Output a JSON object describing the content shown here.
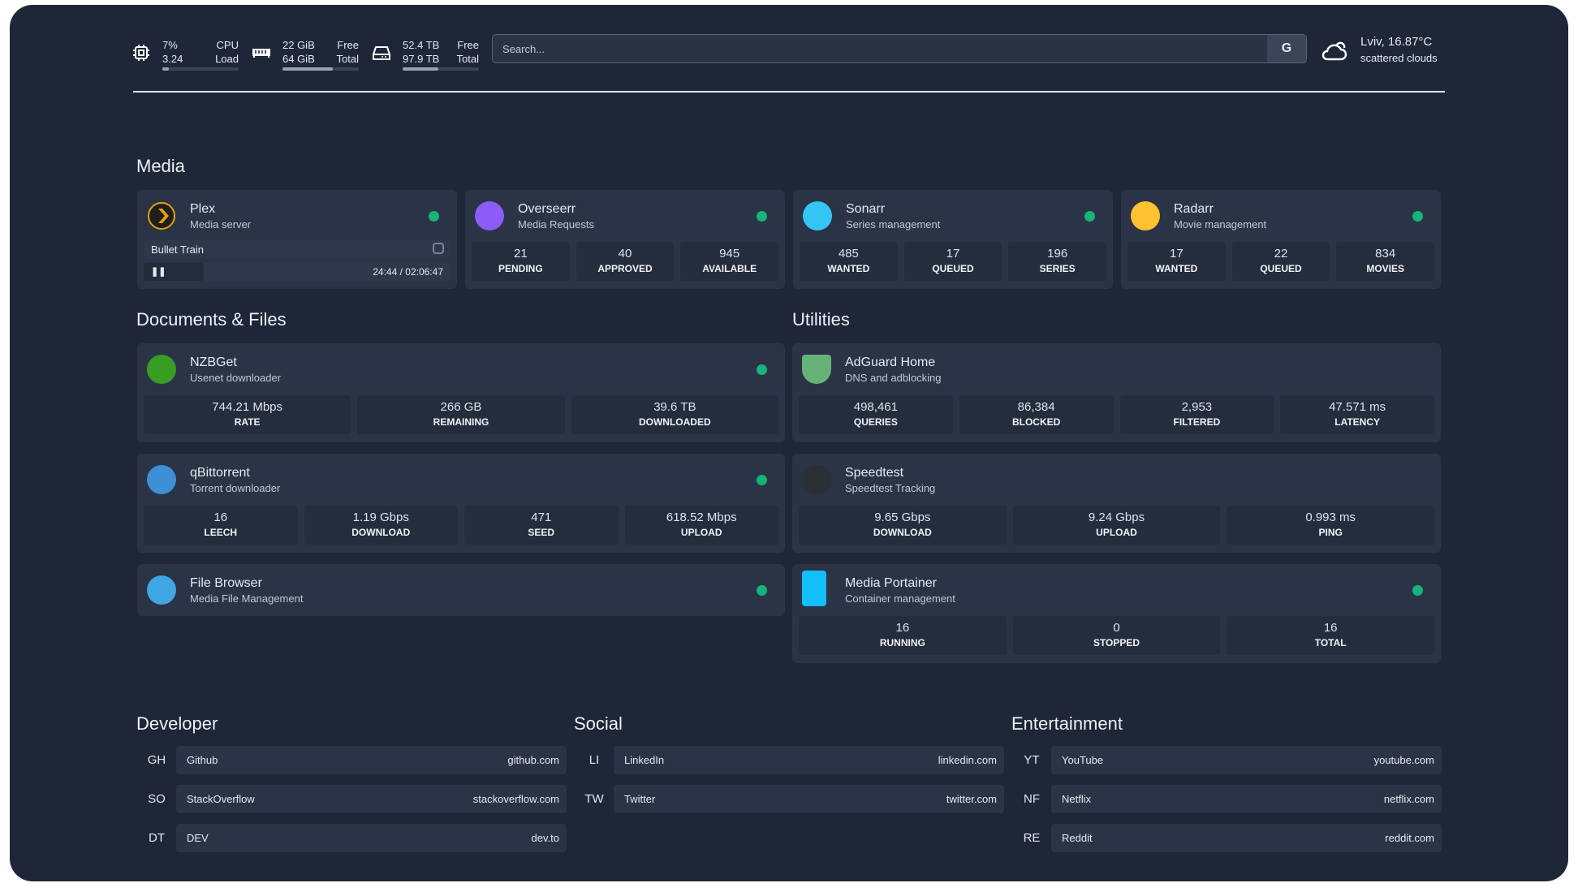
{
  "resources": [
    {
      "icon": "cpu-icon",
      "v1": "7%",
      "v2": "3.24",
      "k1": "CPU",
      "k2": "Load",
      "percent": 7
    },
    {
      "icon": "memory-icon",
      "v1": "22 GiB",
      "v2": "64 GiB",
      "k1": "Free",
      "k2": "Total",
      "percent": 66
    },
    {
      "icon": "disk-icon",
      "v1": "52.4 TB",
      "v2": "97.9 TB",
      "k1": "Free",
      "k2": "Total",
      "percent": 47
    }
  ],
  "search": {
    "placeholder": "Search...",
    "provider": "G"
  },
  "weather": {
    "icon": "cloud-icon",
    "location": "Lviv, 16.87°C",
    "condition": "scattered clouds"
  },
  "sections": {
    "media": "Media",
    "docs": "Documents & Files",
    "utilities": "Utilities",
    "developer": "Developer",
    "social": "Social",
    "entertainment": "Entertainment"
  },
  "status_color": "#16b47a",
  "plex": {
    "title": "Plex",
    "sub": "Media server",
    "now_playing": "Bullet Train",
    "time": "24:44 / 02:06:47",
    "progress_percent": 19.5
  },
  "media": [
    {
      "title": "Overseerr",
      "sub": "Media Requests",
      "icon": "overseerr-icon",
      "color": "#8b5cf6",
      "stats": [
        [
          "21",
          "PENDING"
        ],
        [
          "40",
          "APPROVED"
        ],
        [
          "945",
          "AVAILABLE"
        ]
      ]
    },
    {
      "title": "Sonarr",
      "sub": "Series management",
      "icon": "sonarr-icon",
      "color": "#35c5f4",
      "stats": [
        [
          "485",
          "WANTED"
        ],
        [
          "17",
          "QUEUED"
        ],
        [
          "196",
          "SERIES"
        ]
      ]
    },
    {
      "title": "Radarr",
      "sub": "Movie management",
      "icon": "radarr-icon",
      "color": "#ffc230",
      "stats": [
        [
          "17",
          "WANTED"
        ],
        [
          "22",
          "QUEUED"
        ],
        [
          "834",
          "MOVIES"
        ]
      ]
    }
  ],
  "docs": [
    {
      "title": "NZBGet",
      "sub": "Usenet downloader",
      "icon": "nzbget-icon",
      "color": "#3a9d23",
      "stats": [
        [
          "744.21 Mbps",
          "RATE"
        ],
        [
          "266 GB",
          "REMAINING"
        ],
        [
          "39.6 TB",
          "DOWNLOADED"
        ]
      ]
    },
    {
      "title": "qBittorrent",
      "sub": "Torrent downloader",
      "icon": "qbittorrent-icon",
      "color": "#3d8fd6",
      "stats": [
        [
          "16",
          "LEECH"
        ],
        [
          "1.19 Gbps",
          "DOWNLOAD"
        ],
        [
          "471",
          "SEED"
        ],
        [
          "618.52 Mbps",
          "UPLOAD"
        ]
      ]
    },
    {
      "title": "File Browser",
      "sub": "Media File Management",
      "icon": "filebrowser-icon",
      "color": "#40a7e3",
      "stats": []
    }
  ],
  "utilities": [
    {
      "title": "AdGuard Home",
      "sub": "DNS and adblocking",
      "icon": "adguard-shield-icon",
      "color": "#67b279",
      "stats": [
        [
          "498,461",
          "QUERIES"
        ],
        [
          "86,384",
          "BLOCKED"
        ],
        [
          "2,953",
          "FILTERED"
        ],
        [
          "47.571 ms",
          "LATENCY"
        ]
      ],
      "nodot": true
    },
    {
      "title": "Speedtest",
      "sub": "Speedtest Tracking",
      "icon": "speedtest-icon",
      "color": "#2b2f36",
      "stats": [
        [
          "9.65 Gbps",
          "DOWNLOAD"
        ],
        [
          "9.24 Gbps",
          "UPLOAD"
        ],
        [
          "0.993 ms",
          "PING"
        ]
      ],
      "nodot": true
    },
    {
      "title": "Media Portainer",
      "sub": "Container management",
      "icon": "portainer-icon",
      "color": "#13bef9",
      "stats": [
        [
          "16",
          "RUNNING"
        ],
        [
          "0",
          "STOPPED"
        ],
        [
          "16",
          "TOTAL"
        ]
      ]
    }
  ],
  "bookmarks": [
    [
      {
        "ab": "GH",
        "name": "Github",
        "url": "github.com"
      },
      {
        "ab": "SO",
        "name": "StackOverflow",
        "url": "stackoverflow.com"
      },
      {
        "ab": "DT",
        "name": "DEV",
        "url": "dev.to"
      }
    ],
    [
      {
        "ab": "LI",
        "name": "LinkedIn",
        "url": "linkedin.com"
      },
      {
        "ab": "TW",
        "name": "Twitter",
        "url": "twitter.com"
      }
    ],
    [
      {
        "ab": "YT",
        "name": "YouTube",
        "url": "youtube.com"
      },
      {
        "ab": "NF",
        "name": "Netflix",
        "url": "netflix.com"
      },
      {
        "ab": "RE",
        "name": "Reddit",
        "url": "reddit.com"
      }
    ]
  ]
}
